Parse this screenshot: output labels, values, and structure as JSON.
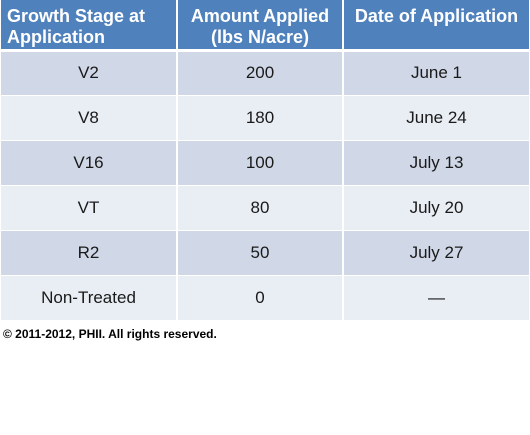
{
  "table": {
    "headers": [
      [
        "Growth Stage at",
        "Application"
      ],
      [
        "Amount Applied",
        "(lbs N/acre)"
      ],
      [
        "Date of Application"
      ]
    ],
    "rows": [
      [
        "V2",
        "200",
        "June 1"
      ],
      [
        "V8",
        "180",
        "June 24"
      ],
      [
        "V16",
        "100",
        "July 13"
      ],
      [
        "VT",
        "80",
        "July 20"
      ],
      [
        "R2",
        "50",
        "July 27"
      ],
      [
        "Non-Treated",
        "0",
        "—"
      ]
    ]
  },
  "footer": {
    "copyright": "© 2011-2012, PHII.  All rights reserved."
  },
  "colors": {
    "header_bg": "#4f81bd",
    "row_dark": "#d0d8e8",
    "row_light": "#e9edf4"
  }
}
